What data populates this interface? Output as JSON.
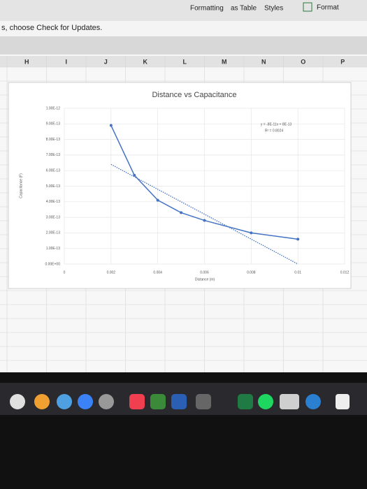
{
  "ui": {
    "toolbar": [
      "Formatting",
      "as Table",
      "Styles",
      "Format"
    ],
    "notice": "s, choose Check for Updates.",
    "columns": [
      "H",
      "I",
      "J",
      "K",
      "L",
      "M",
      "N",
      "O",
      "P"
    ]
  },
  "chart_data": {
    "type": "line",
    "title": "Distance vs Capacitance",
    "x_label": "Distance (m)",
    "y_label": "Capacitance (F)",
    "x": [
      0.002,
      0.003,
      0.004,
      0.005,
      0.006,
      0.008,
      0.01
    ],
    "values": [
      8.9e-13,
      5.7e-13,
      4.1e-13,
      3.3e-13,
      2.8e-13,
      2e-13,
      1.6e-13
    ],
    "color": "#4472c4",
    "trendline": {
      "equation": "y = -8E-11x + 8E-13",
      "r_squared": "R² = 0.8024",
      "slope": -8e-11,
      "intercept": 8e-13,
      "color": "#4472c4"
    },
    "xlim": [
      0,
      0.012
    ],
    "xticks": [
      0,
      0.002,
      0.004,
      0.006,
      0.008,
      0.01,
      0.012
    ],
    "ylim": [
      0,
      1e-12
    ],
    "yticks": [
      {
        "value": 0,
        "label": "0.00E+00"
      },
      {
        "value": 1e-13,
        "label": "1.00E-13"
      },
      {
        "value": 2e-13,
        "label": "2.00E-13"
      },
      {
        "value": 3e-13,
        "label": "3.00E-13"
      },
      {
        "value": 4e-13,
        "label": "4.00E-13"
      },
      {
        "value": 5e-13,
        "label": "5.00E-13"
      },
      {
        "value": 6e-13,
        "label": "6.00E-13"
      },
      {
        "value": 7e-13,
        "label": "7.00E-13"
      },
      {
        "value": 8e-13,
        "label": "8.00E-13"
      },
      {
        "value": 9e-13,
        "label": "9.00E-13"
      },
      {
        "value": 1e-12,
        "label": "1.00E-12"
      }
    ],
    "grid": true
  }
}
